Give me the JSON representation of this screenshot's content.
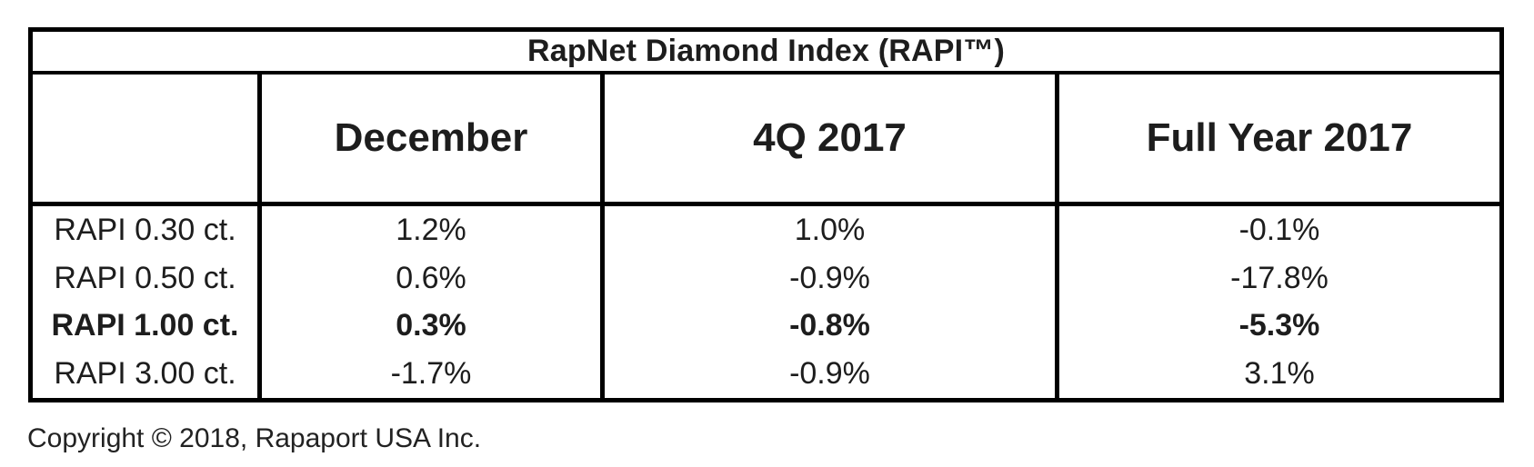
{
  "table": {
    "title": "RapNet Diamond Index (RAPI™)",
    "columns": {
      "label": "",
      "december": "December",
      "q4": "4Q 2017",
      "full_year": "Full Year 2017"
    },
    "rows": [
      {
        "label": "RAPI 0.30 ct.",
        "values": [
          "1.2%",
          "1.0%",
          "-0.1%"
        ],
        "bold": false
      },
      {
        "label": "RAPI 0.50 ct.",
        "values": [
          "0.6%",
          "-0.9%",
          "-17.8%"
        ],
        "bold": false
      },
      {
        "label": "RAPI 1.00 ct.",
        "values": [
          "0.3%",
          "-0.8%",
          "-5.3%"
        ],
        "bold": true
      },
      {
        "label": "RAPI 3.00 ct.",
        "values": [
          "-1.7%",
          "-0.9%",
          "3.1%"
        ],
        "bold": false
      }
    ]
  },
  "footer": {
    "copyright": "Copyright © 2018, Rapaport USA Inc."
  },
  "colors": {
    "border": "#000000",
    "text": "#1d1d1d",
    "background": "#ffffff"
  },
  "chart_data": {
    "type": "table",
    "title": "RapNet Diamond Index (RAPI™)",
    "categories": [
      "RAPI 0.30 ct.",
      "RAPI 0.50 ct.",
      "RAPI 1.00 ct.",
      "RAPI 3.00 ct."
    ],
    "series": [
      {
        "name": "December",
        "values": [
          1.2,
          0.6,
          0.3,
          -1.7
        ]
      },
      {
        "name": "4Q 2017",
        "values": [
          1.0,
          -0.9,
          -0.8,
          -0.9
        ]
      },
      {
        "name": "Full Year 2017",
        "values": [
          -0.1,
          -17.8,
          -5.3,
          3.1
        ]
      }
    ],
    "unit": "%",
    "notes": "Values are percentage price changes; RAPI 1.00 ct. row emphasized in bold"
  }
}
